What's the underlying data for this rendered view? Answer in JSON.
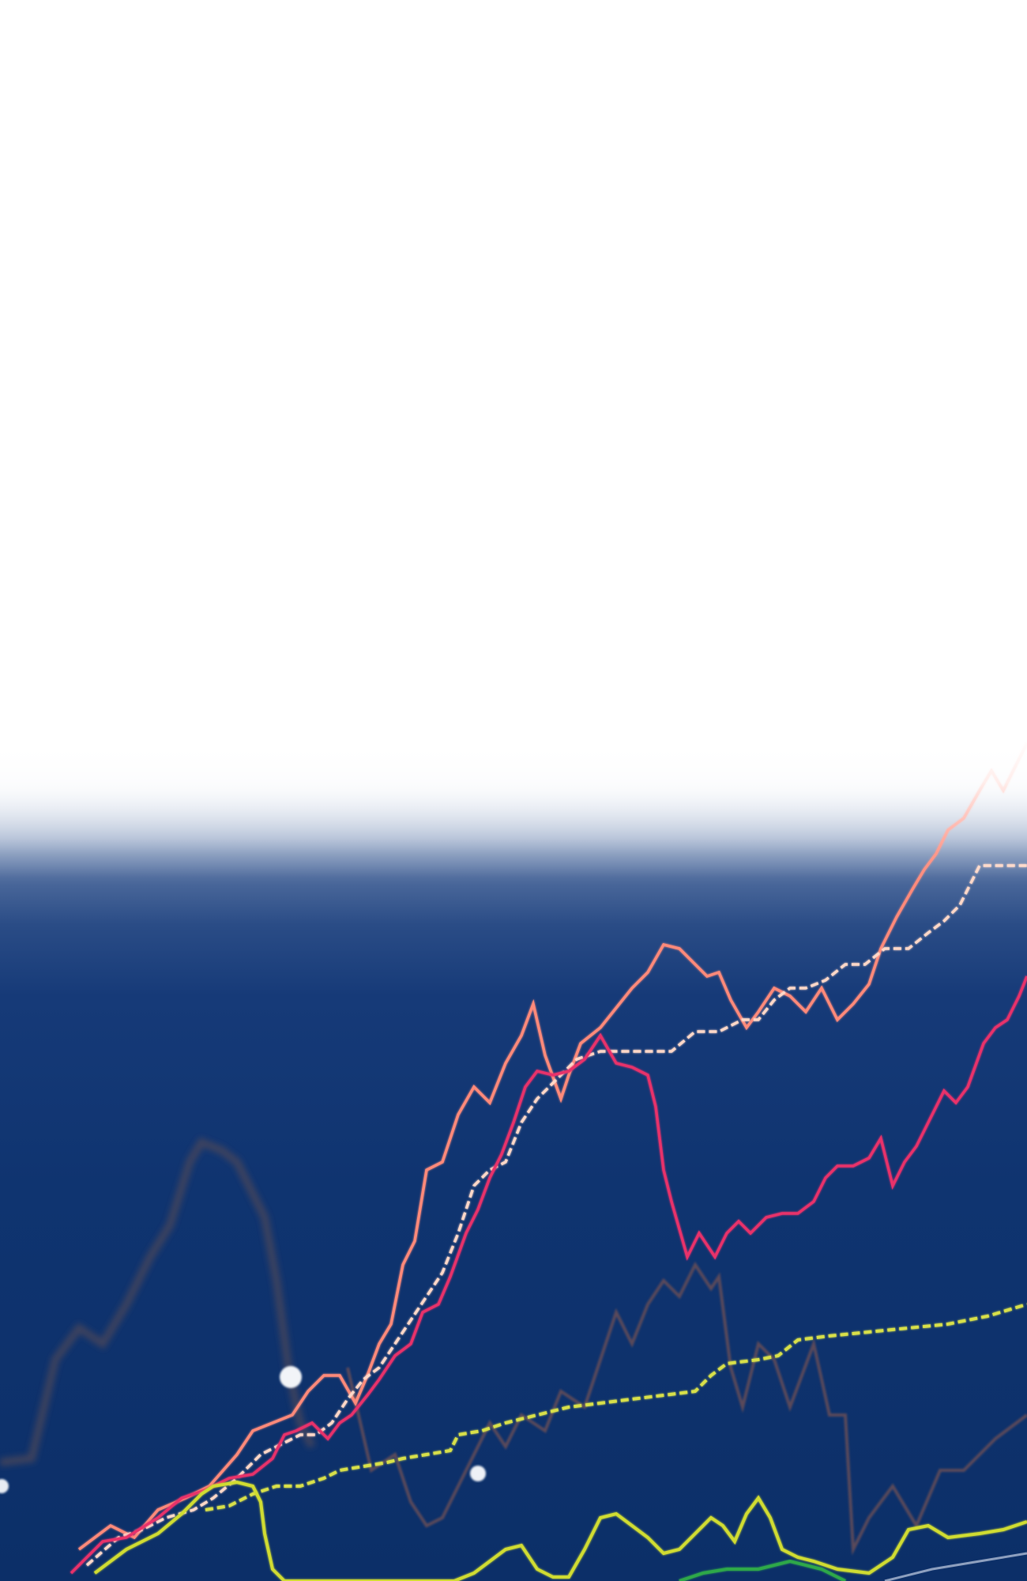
{
  "scene": {
    "description_colors": {
      "background_top": "#ffffff",
      "background_bottom": "#0c2f68"
    },
    "lines": [
      {
        "color": "#ff8a7a",
        "style": "solid"
      },
      {
        "color": "#e8306a",
        "style": "solid"
      },
      {
        "color": "#ffd8c8",
        "style": "dashed"
      },
      {
        "color": "#d8e04a",
        "style": "dashed"
      },
      {
        "color": "#d0dc30",
        "style": "solid"
      },
      {
        "color": "#5a4a5a",
        "style": "solid"
      },
      {
        "color": "#2ea84a",
        "style": "solid"
      }
    ]
  }
}
